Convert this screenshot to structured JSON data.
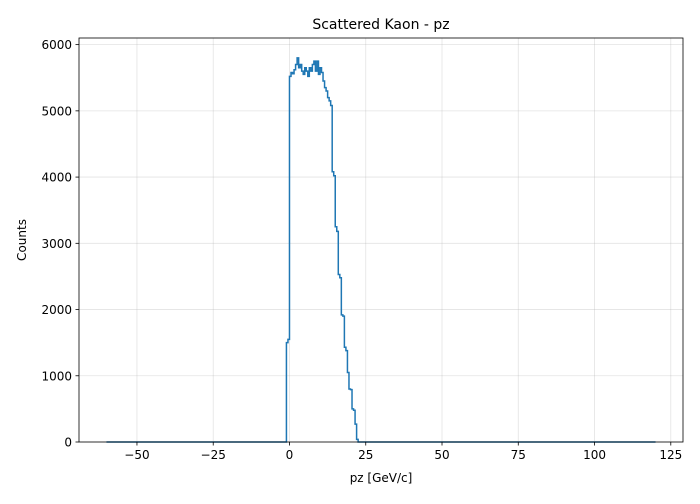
{
  "chart_data": {
    "type": "histogram",
    "title": "Scattered Kaon - pz",
    "xlabel": "pz [GeV/c]",
    "ylabel": "Counts",
    "xlim": [
      -69,
      129
    ],
    "ylim": [
      0,
      6100
    ],
    "xticks": [
      -50,
      -25,
      0,
      25,
      50,
      75,
      100,
      125
    ],
    "xtick_labels": [
      "−50",
      "−25",
      "0",
      "25",
      "50",
      "75",
      "100",
      "125"
    ],
    "yticks": [
      0,
      1000,
      2000,
      3000,
      4000,
      5000,
      6000
    ],
    "ytick_labels": [
      "0",
      "1000",
      "2000",
      "3000",
      "4000",
      "5000",
      "6000"
    ],
    "grid": true,
    "bin_start": -60,
    "bin_width": 0.5,
    "bins_end": 120,
    "line_color": "#1f77b4",
    "nonzero_bins": [
      {
        "x": -1.0,
        "y": 1500
      },
      {
        "x": -0.5,
        "y": 1550
      },
      {
        "x": 0.0,
        "y": 5520
      },
      {
        "x": 0.5,
        "y": 5580
      },
      {
        "x": 1.0,
        "y": 5560
      },
      {
        "x": 1.5,
        "y": 5620
      },
      {
        "x": 2.0,
        "y": 5700
      },
      {
        "x": 2.5,
        "y": 5800
      },
      {
        "x": 3.0,
        "y": 5650
      },
      {
        "x": 3.5,
        "y": 5700
      },
      {
        "x": 4.0,
        "y": 5600
      },
      {
        "x": 4.5,
        "y": 5550
      },
      {
        "x": 5.0,
        "y": 5650
      },
      {
        "x": 5.5,
        "y": 5600
      },
      {
        "x": 6.0,
        "y": 5520
      },
      {
        "x": 6.5,
        "y": 5650
      },
      {
        "x": 7.0,
        "y": 5600
      },
      {
        "x": 7.5,
        "y": 5700
      },
      {
        "x": 8.0,
        "y": 5750
      },
      {
        "x": 8.5,
        "y": 5600
      },
      {
        "x": 9.0,
        "y": 5750
      },
      {
        "x": 9.5,
        "y": 5550
      },
      {
        "x": 10.0,
        "y": 5650
      },
      {
        "x": 10.5,
        "y": 5580
      },
      {
        "x": 11.0,
        "y": 5450
      },
      {
        "x": 11.5,
        "y": 5350
      },
      {
        "x": 12.0,
        "y": 5300
      },
      {
        "x": 12.5,
        "y": 5200
      },
      {
        "x": 13.0,
        "y": 5150
      },
      {
        "x": 13.5,
        "y": 5080
      },
      {
        "x": 14.0,
        "y": 4080
      },
      {
        "x": 14.5,
        "y": 4020
      },
      {
        "x": 15.0,
        "y": 3250
      },
      {
        "x": 15.5,
        "y": 3180
      },
      {
        "x": 16.0,
        "y": 2530
      },
      {
        "x": 16.5,
        "y": 2480
      },
      {
        "x": 17.0,
        "y": 1920
      },
      {
        "x": 17.5,
        "y": 1900
      },
      {
        "x": 18.0,
        "y": 1430
      },
      {
        "x": 18.5,
        "y": 1380
      },
      {
        "x": 19.0,
        "y": 1050
      },
      {
        "x": 19.5,
        "y": 800
      },
      {
        "x": 20.0,
        "y": 790
      },
      {
        "x": 20.5,
        "y": 500
      },
      {
        "x": 21.0,
        "y": 480
      },
      {
        "x": 21.5,
        "y": 270
      },
      {
        "x": 22.0,
        "y": 40
      }
    ]
  }
}
